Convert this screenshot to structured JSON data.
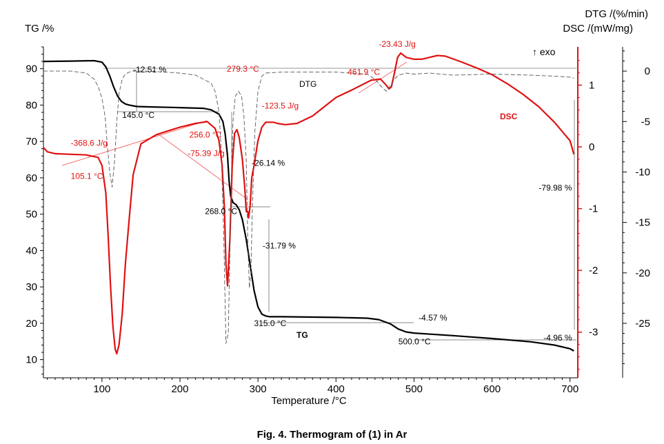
{
  "caption": "Fig. 4. Thermogram of (1) in Ar",
  "chart_data": {
    "type": "line",
    "title": "",
    "xlabel": "Temperature /°C",
    "xlim": [
      25,
      710
    ],
    "x_ticks": [
      100,
      200,
      300,
      400,
      500,
      600,
      700
    ],
    "axes": {
      "tg": {
        "label": "TG /%",
        "lim": [
          5,
          96
        ],
        "ticks": [
          10,
          20,
          30,
          40,
          50,
          60,
          70,
          80,
          90
        ]
      },
      "dsc": {
        "label": "DSC /(mW/mg)",
        "lim": [
          -3.74,
          1.62
        ],
        "ticks": [
          -3,
          -2,
          -1,
          0,
          1
        ],
        "note": "↑ exo"
      },
      "dtg": {
        "label": "DTG /(%/min)",
        "lim": [
          -30.4,
          2.4
        ],
        "ticks": [
          -25,
          -20,
          -15,
          -10,
          -5,
          0
        ]
      }
    },
    "series": [
      {
        "name": "TG",
        "axis": "tg",
        "color": "#000000",
        "style": "solid",
        "x": [
          25,
          60,
          90,
          100,
          105,
          110,
          115,
          120,
          125,
          130,
          135,
          140,
          145,
          160,
          200,
          230,
          240,
          250,
          255,
          258,
          261,
          263,
          265,
          268,
          272,
          276,
          280,
          285,
          290,
          295,
          300,
          305,
          310,
          315,
          330,
          400,
          440,
          455,
          470,
          480,
          490,
          500,
          550,
          600,
          650,
          680,
          700,
          705
        ],
        "y": [
          92.0,
          92.1,
          92.2,
          91.8,
          90.5,
          88.0,
          85.0,
          82.5,
          81.0,
          80.3,
          80.0,
          79.8,
          79.6,
          79.5,
          79.3,
          79.1,
          78.7,
          77.5,
          75.5,
          72.0,
          66.0,
          59.0,
          55.0,
          53.2,
          52.6,
          51.2,
          48.5,
          43.0,
          36.0,
          29.0,
          24.5,
          22.5,
          22.0,
          21.8,
          21.8,
          21.6,
          21.4,
          21.0,
          19.8,
          18.4,
          17.6,
          17.3,
          16.6,
          15.8,
          14.9,
          14.0,
          13.0,
          12.4
        ]
      },
      {
        "name": "DSC",
        "axis": "dsc",
        "color": "#e01010",
        "style": "solid",
        "x": [
          25,
          30,
          40,
          60,
          80,
          95,
          100,
          105,
          108,
          111,
          114,
          117,
          119,
          122,
          126,
          130,
          135,
          140,
          150,
          170,
          200,
          220,
          235,
          245,
          250,
          254,
          257,
          259,
          261,
          264,
          267,
          270,
          273,
          276,
          280,
          283,
          285,
          287,
          288,
          290,
          292,
          295,
          300,
          305,
          310,
          315,
          320,
          325,
          335,
          350,
          370,
          400,
          420,
          445,
          457,
          463,
          468,
          471,
          475,
          479,
          483,
          490,
          500,
          510,
          520,
          530,
          540,
          560,
          580,
          600,
          620,
          640,
          660,
          680,
          700,
          705
        ],
        "y": [
          -0.01,
          -0.08,
          -0.11,
          -0.12,
          -0.13,
          -0.17,
          -0.3,
          -0.75,
          -1.45,
          -2.25,
          -2.9,
          -3.28,
          -3.35,
          -3.2,
          -2.7,
          -1.9,
          -1.15,
          -0.45,
          0.05,
          0.2,
          0.32,
          0.38,
          0.41,
          0.3,
          0.1,
          -0.3,
          -1.0,
          -1.9,
          -2.25,
          -1.5,
          -0.3,
          0.22,
          0.28,
          0.15,
          -0.2,
          -0.65,
          -1.05,
          -1.05,
          -1.15,
          -0.95,
          -0.5,
          -0.3,
          0.1,
          0.32,
          0.4,
          0.4,
          0.4,
          0.38,
          0.36,
          0.38,
          0.5,
          0.8,
          0.92,
          1.08,
          1.1,
          1.02,
          0.94,
          0.97,
          1.2,
          1.45,
          1.52,
          1.45,
          1.42,
          1.42,
          1.45,
          1.48,
          1.47,
          1.38,
          1.28,
          1.17,
          1.02,
          0.85,
          0.65,
          0.4,
          0.1,
          -0.12
        ]
      },
      {
        "name": "DTG",
        "axis": "dtg",
        "color": "#555555",
        "style": "dashed",
        "x": [
          25,
          60,
          80,
          90,
          95,
          100,
          104,
          107,
          110,
          113,
          116,
          119,
          122,
          126,
          130,
          135,
          140,
          150,
          160,
          180,
          200,
          220,
          240,
          245,
          250,
          253,
          256,
          259,
          262,
          264,
          266,
          268,
          271,
          275,
          279,
          282,
          285,
          287,
          289,
          291,
          293,
          296,
          300,
          305,
          310,
          330,
          400,
          440,
          450,
          460,
          465,
          470,
          475,
          480,
          490,
          500,
          520,
          550,
          600,
          650,
          680,
          700,
          705
        ],
        "y": [
          0,
          0,
          -0.2,
          -0.8,
          -1.5,
          -2.7,
          -4.5,
          -7.5,
          -10.0,
          -11.5,
          -9.0,
          -5.0,
          -2.2,
          -0.8,
          -0.3,
          -0.1,
          0,
          0,
          0,
          -0.1,
          -0.2,
          -0.4,
          -1.2,
          -2.0,
          -4.0,
          -8.0,
          -16.0,
          -27.0,
          -26.0,
          -18.0,
          -10.0,
          -5.0,
          -2.5,
          -2.0,
          -2.5,
          -4.5,
          -9.0,
          -17.0,
          -21.5,
          -20.0,
          -13.0,
          -6.0,
          -2.0,
          -0.5,
          -0.2,
          -0.1,
          -0.1,
          -0.3,
          -0.8,
          -1.7,
          -2.0,
          -1.4,
          -0.8,
          -0.4,
          -0.2,
          -0.3,
          -0.2,
          -0.4,
          -0.3,
          -0.4,
          -0.5,
          -0.6,
          -0.7
        ]
      }
    ],
    "curve_labels": [
      "TG",
      "DSC",
      "DTG"
    ],
    "annotations": [
      {
        "text": "-12.51 %",
        "x": 140,
        "axis": "tg",
        "y": 89,
        "color": "#000000"
      },
      {
        "text": "145.0 °C",
        "x": 126,
        "axis": "tg",
        "y": 76.5,
        "color": "#000000"
      },
      {
        "text": "-368.6 J/g",
        "x": 60,
        "axis": "dsc",
        "y": 0.02,
        "color": "#e01010"
      },
      {
        "text": "105.1 °C",
        "x": 60,
        "axis": "dsc",
        "y": -0.52,
        "color": "#e01010"
      },
      {
        "text": "279.3 °C",
        "x": 260,
        "axis": "dsc",
        "y": 1.22,
        "color": "#e01010"
      },
      {
        "text": "-123.5 J/g",
        "x": 305,
        "axis": "dsc",
        "y": 0.62,
        "color": "#e01010"
      },
      {
        "text": "256.0 °C",
        "x": 212,
        "axis": "dsc",
        "y": 0.15,
        "color": "#e01010"
      },
      {
        "text": "-75.39 J/g",
        "x": 210,
        "axis": "dsc",
        "y": -0.15,
        "color": "#e01010"
      },
      {
        "text": "-26.14 %",
        "x": 292,
        "axis": "tg",
        "y": 63.3,
        "color": "#000000"
      },
      {
        "text": "268.0 °C",
        "x": 232,
        "axis": "tg",
        "y": 50,
        "color": "#000000"
      },
      {
        "text": "-31.79 %",
        "x": 306,
        "axis": "tg",
        "y": 40.5,
        "color": "#000000"
      },
      {
        "text": "315.0 °C",
        "x": 295,
        "axis": "tg",
        "y": 19.2,
        "color": "#000000"
      },
      {
        "text": "-23.43 J/g",
        "x": 455,
        "axis": "dsc",
        "y": 1.62,
        "color": "#e01010"
      },
      {
        "text": "461.9 °C",
        "x": 415,
        "axis": "dsc",
        "y": 1.17,
        "color": "#e01010"
      },
      {
        "text": "-4.57 %",
        "x": 506,
        "axis": "tg",
        "y": 20.7,
        "color": "#000000"
      },
      {
        "text": "500.0 °C",
        "x": 480,
        "axis": "tg",
        "y": 14.2,
        "color": "#000000"
      },
      {
        "text": "-79.98 %",
        "x": 660,
        "axis": "tg",
        "y": 56.5,
        "color": "#000000"
      },
      {
        "text": "-4.96 %",
        "x": 666,
        "axis": "tg",
        "y": 15.2,
        "color": "#000000"
      }
    ]
  }
}
